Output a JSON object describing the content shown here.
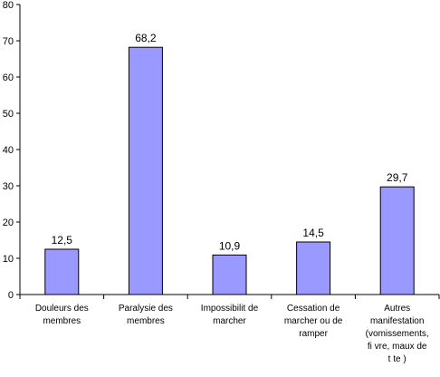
{
  "chart_data": {
    "type": "bar",
    "categories": [
      "Douleurs des\nmembres",
      "Paralysie des\nmembres",
      "Impossibilit  de\nmarcher",
      "Cessation de\nmarcher ou de\nramper",
      "Autres\nmanifestation\n(vomissements,\nfi  vre, maux de\nt  te  )"
    ],
    "values": [
      12.5,
      68.2,
      10.9,
      14.5,
      29.7
    ],
    "data_labels": [
      "12,5",
      "68,2",
      "10,9",
      "14,5",
      "29,7"
    ],
    "ylim": [
      0,
      80
    ],
    "yticks": [
      0,
      10,
      20,
      30,
      40,
      50,
      60,
      70,
      80
    ],
    "grid": false,
    "legend": "none",
    "colors": {
      "bar_fill": "#9999ff",
      "bar_stroke": "#000000",
      "axis": "#000000"
    }
  }
}
